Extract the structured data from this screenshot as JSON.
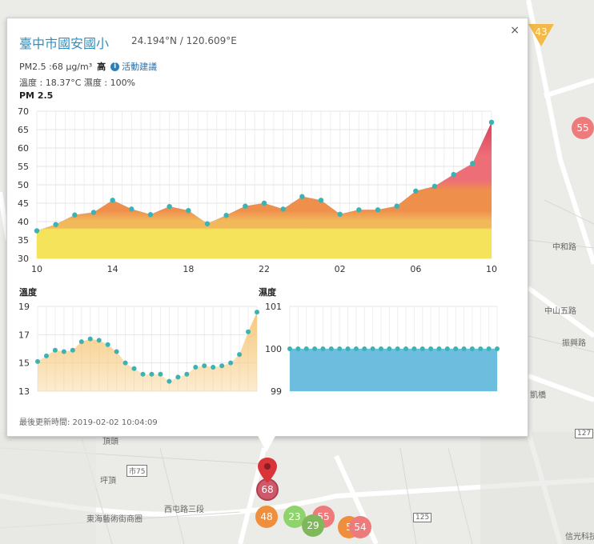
{
  "popup": {
    "title": "臺中市國安國小",
    "coords": "24.194°N / 120.609°E",
    "pm_label": "PM2.5 :68 μg/m³",
    "pm_level": "高",
    "advice_label": "活動建議",
    "temp_humidity": "溫度 : 18.37°C 濕度 : 100%",
    "close_label": "×",
    "updated": "最後更新時間: 2019-02-02 10:04:09"
  },
  "map": {
    "labels": [
      "坪頂",
      "東海藝術街商圈",
      "西屯路三段",
      "頂頭",
      "市75",
      "125",
      "127",
      "中和路",
      "中山五路",
      "振興路",
      "凱橋",
      "信光科技"
    ],
    "markers": [
      {
        "value": "43",
        "color": "#f3b94a",
        "shape": "triangle"
      },
      {
        "value": "55",
        "color": "#ee7b7b"
      },
      {
        "value": "68",
        "color": "#cc5a6a",
        "selected": true
      },
      {
        "value": "48",
        "color": "#ef8f3e"
      },
      {
        "value": "23",
        "color": "#8fd36c"
      },
      {
        "value": "55",
        "color": "#ee7b7b"
      },
      {
        "value": "29",
        "color": "#7fb85a"
      },
      {
        "value": "5",
        "color": "#ef8f3e"
      },
      {
        "value": "54",
        "color": "#ee7b7b"
      }
    ]
  },
  "chart_data": [
    {
      "type": "area",
      "title": "PM 2.5",
      "x_ticks": [
        "10",
        "14",
        "18",
        "22",
        "02",
        "06",
        "10"
      ],
      "ylim": [
        30,
        70
      ],
      "y_ticks": [
        30,
        35,
        40,
        45,
        50,
        55,
        60,
        65,
        70
      ],
      "grid": true,
      "values": [
        37.5,
        39.2,
        41.8,
        42.5,
        45.8,
        43.4,
        41.9,
        44.1,
        43.0,
        39.4,
        41.7,
        44.2,
        45.0,
        43.4,
        46.8,
        45.8,
        42.0,
        43.2,
        43.2,
        44.2,
        48.3,
        49.6,
        52.8,
        55.8,
        67.0
      ],
      "colors": {
        "band_low": "#f5e35b",
        "band_mid": "#f2b95a",
        "band_high": "#ef8f4c",
        "band_vhigh": "#ee6e78",
        "band_top": "#dd3e5a",
        "point": "#3bb3b3"
      }
    },
    {
      "type": "area",
      "title": "溫度",
      "ylim": [
        13,
        19
      ],
      "y_ticks": [
        13,
        15,
        17,
        19
      ],
      "grid": true,
      "values": [
        15.1,
        15.5,
        15.9,
        15.8,
        15.9,
        16.5,
        16.7,
        16.6,
        16.3,
        15.8,
        15.0,
        14.6,
        14.2,
        14.2,
        14.2,
        13.7,
        14.0,
        14.2,
        14.7,
        14.8,
        14.7,
        14.8,
        15.0,
        15.6,
        17.2,
        18.6
      ],
      "colors": {
        "fill": "#f6c87a",
        "point": "#3bb3b3"
      }
    },
    {
      "type": "area",
      "title": "濕度",
      "ylim": [
        99,
        101
      ],
      "y_ticks": [
        99,
        100,
        101
      ],
      "grid": true,
      "values": [
        100,
        100,
        100,
        100,
        100,
        100,
        100,
        100,
        100,
        100,
        100,
        100,
        100,
        100,
        100,
        100,
        100,
        100,
        100,
        100,
        100,
        100,
        100,
        100,
        100,
        100
      ],
      "colors": {
        "fill": "#6dbede",
        "point": "#3bb3b3"
      }
    }
  ]
}
